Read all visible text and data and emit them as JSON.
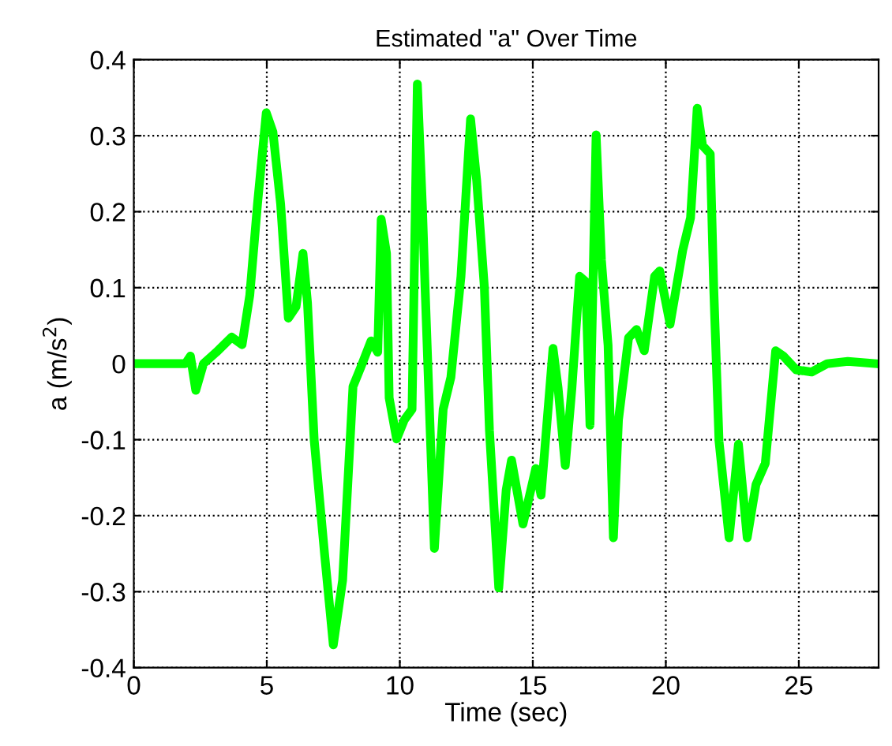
{
  "chart_data": {
    "type": "line",
    "title": "Estimated \"a\" Over Time",
    "xlabel": "Time (sec)",
    "ylabel": "a (m/s$^{2}$)",
    "xlim": [
      0,
      28
    ],
    "xticks": [
      0,
      5,
      10,
      15,
      20,
      25
    ],
    "ylim": [
      -0.4,
      0.4
    ],
    "yticks": [
      -0.4,
      -0.3,
      -0.2,
      -0.1,
      0,
      0.1,
      0.2,
      0.3,
      0.4
    ],
    "grid": true,
    "series": [
      {
        "color": "#00ff00",
        "x": [
          0,
          1.94,
          2.13,
          2.33,
          2.62,
          3.1,
          3.68,
          4.07,
          4.36,
          4.65,
          4.98,
          5.23,
          5.52,
          5.81,
          6.1,
          6.36,
          6.53,
          6.78,
          7.17,
          7.5,
          7.85,
          8.24,
          8.53,
          8.92,
          9.17,
          9.3,
          9.5,
          9.6,
          9.88,
          10.17,
          10.46,
          10.66,
          10.85,
          10.95,
          11.3,
          11.63,
          11.92,
          12.3,
          12.66,
          12.89,
          13.18,
          13.37,
          13.72,
          14.0,
          14.2,
          14.63,
          15.11,
          15.31,
          15.76,
          15.95,
          16.22,
          16.47,
          16.76,
          16.99,
          17.15,
          17.38,
          17.58,
          17.83,
          18.03,
          18.22,
          18.6,
          18.9,
          19.19,
          19.58,
          19.77,
          20.16,
          20.64,
          20.93,
          21.18,
          21.38,
          21.67,
          21.8,
          22.0,
          22.38,
          22.73,
          23.06,
          23.39,
          23.74,
          24.13,
          24.42,
          24.9,
          25.48,
          26.07,
          26.84,
          27.9
        ],
        "values": [
          0,
          0,
          0.01,
          -0.035,
          0,
          0.015,
          0.035,
          0.025,
          0.09,
          0.21,
          0.33,
          0.305,
          0.21,
          0.06,
          0.075,
          0.145,
          0.08,
          -0.1,
          -0.25,
          -0.37,
          -0.285,
          -0.03,
          -0.005,
          0.03,
          0.015,
          0.19,
          0.145,
          -0.045,
          -0.099,
          -0.074,
          -0.06,
          0.368,
          0.206,
          0.1,
          -0.243,
          -0.06,
          -0.018,
          0.115,
          0.322,
          0.241,
          0.1,
          -0.088,
          -0.295,
          -0.166,
          -0.127,
          -0.211,
          -0.138,
          -0.173,
          0.02,
          -0.032,
          -0.134,
          -0.032,
          0.115,
          0.108,
          -0.081,
          0.301,
          0.136,
          0.024,
          -0.229,
          -0.074,
          0.034,
          0.045,
          0.017,
          0.115,
          0.122,
          0.052,
          0.15,
          0.192,
          0.336,
          0.287,
          0.276,
          0.101,
          -0.102,
          -0.229,
          -0.106,
          -0.229,
          -0.159,
          -0.131,
          0.017,
          0.01,
          -0.008,
          -0.011,
          0,
          0.003,
          0
        ]
      }
    ]
  }
}
